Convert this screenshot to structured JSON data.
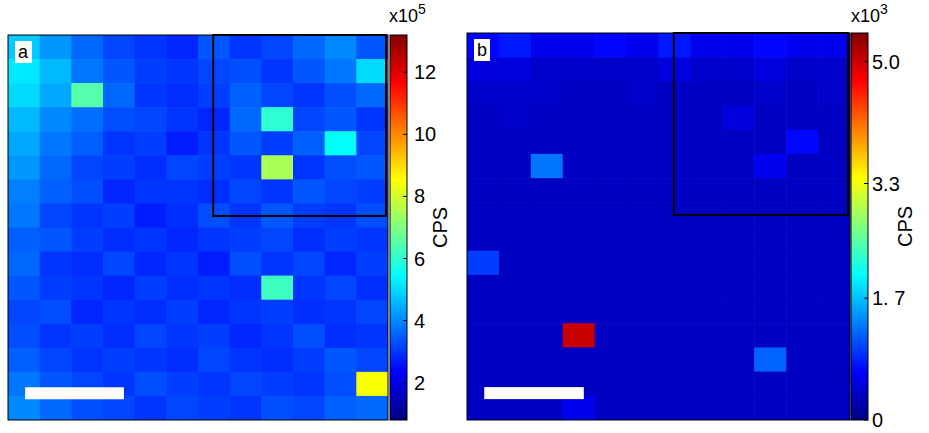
{
  "chart_data": [
    {
      "type": "heatmap",
      "label": "a",
      "tick_labels": false,
      "cells": [
        [
          4.8,
          4.2,
          3.6,
          3.2,
          3.0,
          2.8,
          3.4,
          3.0,
          3.2,
          3.6,
          4.0,
          3.4
        ],
        [
          5.2,
          4.6,
          3.8,
          3.4,
          3.1,
          3.0,
          3.2,
          3.3,
          3.0,
          3.4,
          3.8,
          5.0
        ],
        [
          5.0,
          4.4,
          6.5,
          3.6,
          3.0,
          2.9,
          3.1,
          3.5,
          3.2,
          3.0,
          3.3,
          3.6
        ],
        [
          4.6,
          4.0,
          3.7,
          3.3,
          3.2,
          3.0,
          2.8,
          3.6,
          6.0,
          3.2,
          3.4,
          3.0
        ],
        [
          4.4,
          3.8,
          3.5,
          3.0,
          3.1,
          2.7,
          3.0,
          3.4,
          3.1,
          3.5,
          5.5,
          3.2
        ],
        [
          4.2,
          3.6,
          3.2,
          3.1,
          2.9,
          3.2,
          3.1,
          3.0,
          7.5,
          3.0,
          3.3,
          3.4
        ],
        [
          3.9,
          3.5,
          3.3,
          2.8,
          3.0,
          3.0,
          2.9,
          3.2,
          3.0,
          3.4,
          3.2,
          3.1
        ],
        [
          3.8,
          3.2,
          3.0,
          3.1,
          2.7,
          2.9,
          3.3,
          3.0,
          3.4,
          3.1,
          3.0,
          3.3
        ],
        [
          3.5,
          3.4,
          3.1,
          2.9,
          3.0,
          2.8,
          3.0,
          3.1,
          3.2,
          2.9,
          3.1,
          3.0
        ],
        [
          3.6,
          3.0,
          2.9,
          3.2,
          2.8,
          3.0,
          2.7,
          3.3,
          3.0,
          3.2,
          2.8,
          3.1
        ],
        [
          3.4,
          3.1,
          3.0,
          2.8,
          3.1,
          2.9,
          3.0,
          2.9,
          6.2,
          3.0,
          3.2,
          2.9
        ],
        [
          3.2,
          3.3,
          2.8,
          3.0,
          2.9,
          3.1,
          2.8,
          3.0,
          3.1,
          2.9,
          3.0,
          3.2
        ],
        [
          3.3,
          3.0,
          3.1,
          2.9,
          3.2,
          3.0,
          3.1,
          2.8,
          3.0,
          3.3,
          2.9,
          3.0
        ],
        [
          3.5,
          3.2,
          3.0,
          3.1,
          3.0,
          2.9,
          3.2,
          3.0,
          2.9,
          3.1,
          3.4,
          3.2
        ],
        [
          3.8,
          3.4,
          3.2,
          3.0,
          3.3,
          3.1,
          3.0,
          3.2,
          3.1,
          3.0,
          3.3,
          8.5
        ],
        [
          4.0,
          3.6,
          3.3,
          3.2,
          3.0,
          3.2,
          3.1,
          3.0,
          3.3,
          3.2,
          3.5,
          3.6
        ]
      ],
      "colorbar": {
        "label": "CPS",
        "multiplier": {
          "base": "x10",
          "exponent": 5
        },
        "range": [
          0.8,
          13.2
        ],
        "ticks": [
          2,
          4,
          6,
          8,
          10,
          12
        ]
      }
    },
    {
      "type": "heatmap",
      "label": "b",
      "tick_labels": false,
      "cells": [
        [
          0.7,
          0.8,
          0.6,
          0.6,
          0.7,
          0.6,
          0.8,
          0.6,
          0.6,
          0.7,
          0.6,
          0.6
        ],
        [
          0.5,
          0.5,
          0.4,
          0.4,
          0.4,
          0.4,
          0.5,
          0.4,
          0.4,
          0.5,
          0.4,
          0.4
        ],
        [
          0.4,
          0.4,
          0.4,
          0.35,
          0.35,
          0.4,
          0.35,
          0.35,
          0.35,
          0.4,
          0.35,
          0.4
        ],
        [
          0.35,
          0.4,
          0.35,
          0.35,
          0.35,
          0.35,
          0.35,
          0.35,
          0.5,
          0.35,
          0.35,
          0.35
        ],
        [
          0.35,
          0.35,
          0.35,
          0.35,
          0.35,
          0.35,
          0.35,
          0.35,
          0.35,
          0.35,
          0.7,
          0.35
        ],
        [
          0.35,
          0.35,
          1.3,
          0.35,
          0.35,
          0.35,
          0.35,
          0.35,
          0.35,
          0.6,
          0.35,
          0.35
        ],
        [
          0.35,
          0.35,
          0.35,
          0.35,
          0.35,
          0.35,
          0.35,
          0.35,
          0.35,
          0.35,
          0.35,
          0.35
        ],
        [
          0.35,
          0.35,
          0.35,
          0.35,
          0.35,
          0.35,
          0.35,
          0.35,
          0.35,
          0.35,
          0.35,
          0.35
        ],
        [
          0.35,
          0.35,
          0.35,
          0.35,
          0.35,
          0.35,
          0.35,
          0.35,
          0.35,
          0.35,
          0.35,
          0.35
        ],
        [
          1.0,
          0.35,
          0.35,
          0.35,
          0.35,
          0.35,
          0.35,
          0.35,
          0.35,
          0.35,
          0.35,
          0.35
        ],
        [
          0.35,
          0.35,
          0.35,
          0.35,
          0.35,
          0.35,
          0.35,
          0.35,
          0.35,
          0.35,
          0.35,
          0.35
        ],
        [
          0.35,
          0.35,
          0.35,
          0.35,
          0.35,
          0.35,
          0.35,
          0.35,
          0.35,
          0.35,
          0.35,
          0.35
        ],
        [
          0.35,
          0.35,
          0.35,
          5.0,
          0.35,
          0.35,
          0.35,
          0.35,
          0.35,
          0.35,
          0.35,
          0.35
        ],
        [
          0.35,
          0.35,
          0.35,
          0.35,
          0.35,
          0.35,
          0.35,
          0.35,
          0.35,
          1.2,
          0.35,
          0.35
        ],
        [
          0.35,
          0.35,
          0.35,
          0.35,
          0.35,
          0.35,
          0.35,
          0.35,
          0.35,
          0.35,
          0.35,
          0.35
        ],
        [
          0.35,
          0.35,
          0.35,
          0.6,
          0.35,
          0.35,
          0.35,
          0.35,
          0.35,
          0.35,
          0.35,
          0.35
        ]
      ],
      "colorbar": {
        "label": "CPS",
        "multiplier": {
          "base": "x10",
          "exponent": 3
        },
        "range": [
          0,
          5.4
        ],
        "ticks": [
          0,
          {
            "value": 1.7,
            "label": "1. 7"
          },
          3.3,
          {
            "value": 5,
            "label": "5.0"
          }
        ]
      }
    }
  ]
}
